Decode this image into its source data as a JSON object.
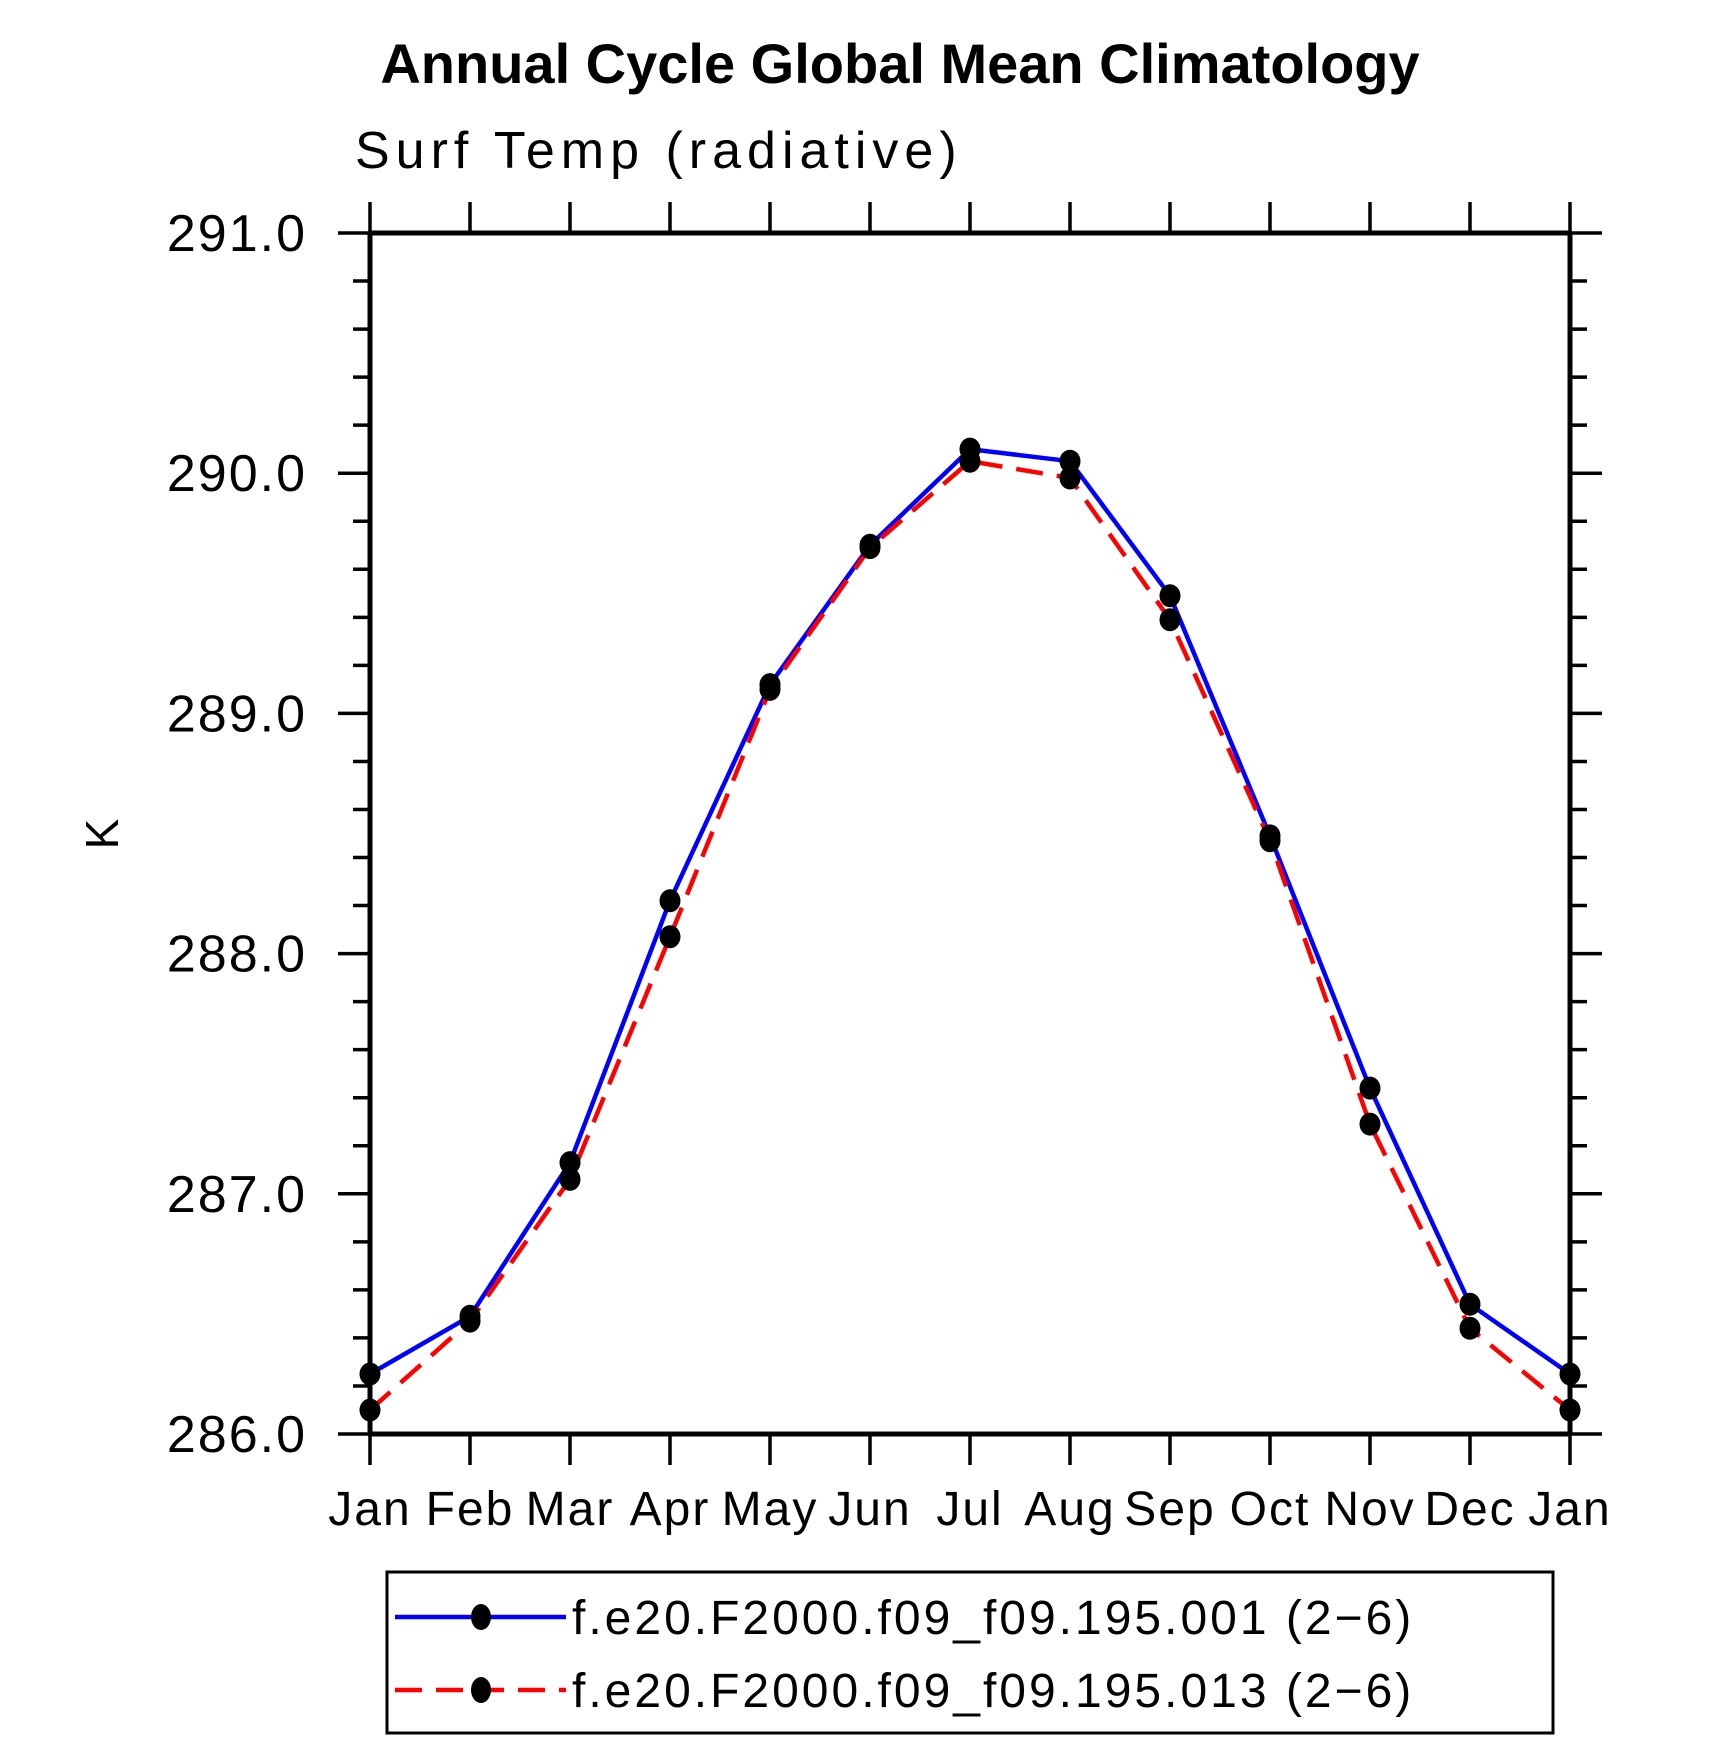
{
  "chart_data": {
    "type": "line",
    "title": "Annual Cycle Global Mean Climatology",
    "subtitle": "Surf Temp (radiative)",
    "ylabel": "K",
    "xlabel": "",
    "ylim": [
      286.0,
      291.0
    ],
    "ytick_major_step": 1.0,
    "ytick_minor_step": 0.2,
    "ytick_labels": [
      "286.0",
      "287.0",
      "288.0",
      "289.0",
      "290.0",
      "291.0"
    ],
    "grid": "off",
    "legend_position": "bottom-boxed",
    "marker_color": "#000000",
    "categories": [
      "Jan",
      "Feb",
      "Mar",
      "Apr",
      "May",
      "Jun",
      "Jul",
      "Aug",
      "Sep",
      "Oct",
      "Nov",
      "Dec",
      "Jan"
    ],
    "series": [
      {
        "name": "f.e20.F2000.f09_f09.195.001 (2−6)",
        "color": "#0000ff",
        "style": "solid",
        "marker": "filled-circle",
        "values": [
          286.25,
          286.49,
          287.13,
          288.22,
          289.12,
          289.7,
          290.1,
          290.05,
          289.49,
          288.49,
          287.44,
          286.54,
          286.25
        ]
      },
      {
        "name": "f.e20.F2000.f09_f09.195.013 (2−6)",
        "color": "#ff0000",
        "style": "dashed",
        "marker": "filled-circle",
        "values": [
          286.1,
          286.47,
          287.06,
          288.07,
          289.1,
          289.69,
          290.05,
          289.98,
          289.39,
          288.47,
          287.29,
          286.44,
          286.1
        ]
      }
    ]
  }
}
